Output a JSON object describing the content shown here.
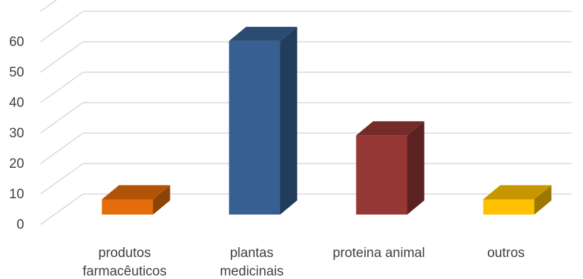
{
  "chart_data": {
    "type": "bar",
    "style": "3d-column",
    "categories": [
      [
        "produtos",
        "farmacêuticos"
      ],
      [
        "plantas",
        "medicinais"
      ],
      [
        "proteina animal"
      ],
      [
        "outros"
      ]
    ],
    "values": [
      5,
      57,
      26,
      5
    ],
    "colors": [
      "#E46C0A",
      "#376092",
      "#953735",
      "#FFC000"
    ],
    "yticks": [
      0,
      10,
      20,
      30,
      40,
      50,
      60
    ],
    "ylim": [
      0,
      70
    ],
    "grid": true,
    "legend": "none",
    "title": "",
    "xlabel": "",
    "ylabel": ""
  }
}
